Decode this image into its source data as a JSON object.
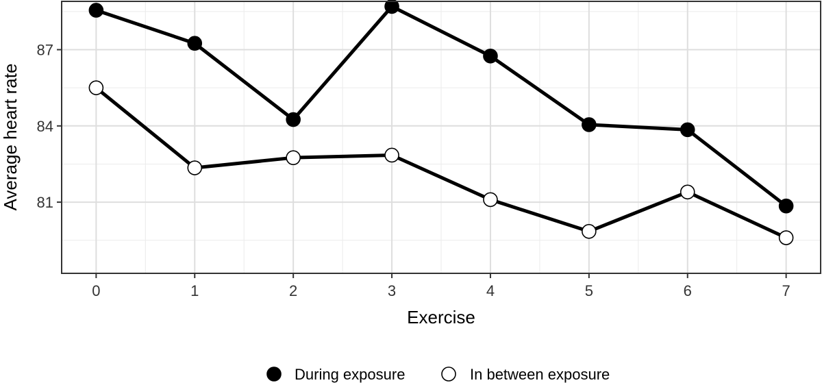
{
  "chart_data": {
    "type": "line",
    "title": "",
    "xlabel": "Exercise",
    "ylabel": "Average heart rate",
    "x": [
      0,
      1,
      2,
      3,
      4,
      5,
      6,
      7
    ],
    "x_ticks": [
      "0",
      "1",
      "2",
      "3",
      "4",
      "5",
      "6",
      "7"
    ],
    "y_ticks": [
      "81",
      "84",
      "87"
    ],
    "y_tick_values": [
      81,
      84,
      87
    ],
    "xlim": [
      -0.35,
      7.35
    ],
    "ylim": [
      78.2,
      88.9
    ],
    "grid": true,
    "legend_position": "bottom",
    "series": [
      {
        "name": "During exposure",
        "marker": "filled-circle",
        "color": "#000000",
        "values": [
          88.55,
          87.25,
          84.25,
          88.7,
          86.75,
          84.05,
          83.85,
          80.85
        ]
      },
      {
        "name": "In between exposure",
        "marker": "open-circle",
        "color": "#000000",
        "values": [
          85.5,
          82.35,
          82.75,
          82.85,
          81.1,
          79.85,
          81.4,
          79.6
        ]
      }
    ]
  }
}
